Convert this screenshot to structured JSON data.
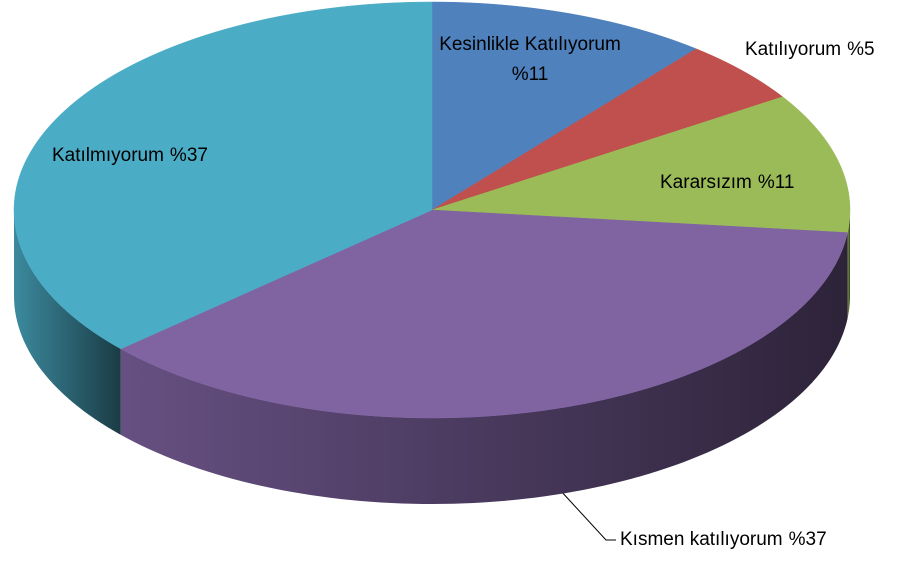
{
  "chart_data": {
    "type": "pie3d",
    "categories": [
      "Kesinlikle Katılıyorum",
      "Katılıyorum",
      "Kararsızım",
      "Kısmen katılıyorum",
      "Katılmıyorum"
    ],
    "values": [
      11,
      5,
      11,
      37,
      37
    ],
    "value_labels": [
      "%11",
      "%5",
      "%11",
      "%37",
      "%37"
    ],
    "colors": [
      "#4f81bd",
      "#c0504d",
      "#9bbb59",
      "#8064a2",
      "#4bacc6"
    ]
  }
}
